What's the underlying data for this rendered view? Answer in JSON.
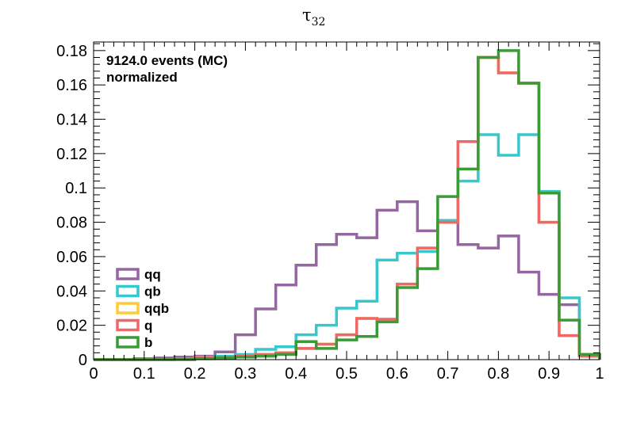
{
  "chart_data": {
    "type": "line",
    "title": "τ",
    "title_subscript": "32",
    "xlabel": "",
    "ylabel": "",
    "xlim": [
      0,
      1
    ],
    "ylim": [
      0,
      0.185
    ],
    "xticks": [
      "0",
      "0.1",
      "0.2",
      "0.3",
      "0.4",
      "0.5",
      "0.6",
      "0.7",
      "0.8",
      "0.9",
      "1"
    ],
    "yticks": [
      "0",
      "0.02",
      "0.04",
      "0.06",
      "0.08",
      "0.1",
      "0.12",
      "0.14",
      "0.16",
      "0.18"
    ],
    "annotation_lines": [
      "9124.0 events (MC)",
      "normalized"
    ],
    "grid": false,
    "legend_position": "bottom-left",
    "bin_edges": [
      0,
      0.04,
      0.08,
      0.12,
      0.16,
      0.2,
      0.24,
      0.28,
      0.32,
      0.36,
      0.4,
      0.44,
      0.48,
      0.52,
      0.56,
      0.6,
      0.64,
      0.68,
      0.72,
      0.76,
      0.8,
      0.84,
      0.88,
      0.92,
      0.96,
      1.0
    ],
    "series": [
      {
        "name": "qq",
        "color": "#9467a0",
        "values": [
          0,
          0,
          0.0005,
          0.001,
          0.0015,
          0.002,
          0.0045,
          0.0145,
          0.0295,
          0.0435,
          0.055,
          0.067,
          0.073,
          0.071,
          0.087,
          0.092,
          0.075,
          0.081,
          0.067,
          0.065,
          0.072,
          0.051,
          0.038,
          0.032,
          0.003
        ]
      },
      {
        "name": "qb",
        "color": "#36c8cc",
        "values": [
          0,
          0,
          0,
          0,
          0.0005,
          0.0015,
          0.002,
          0.003,
          0.006,
          0.0075,
          0.0145,
          0.02,
          0.03,
          0.034,
          0.058,
          0.062,
          0.063,
          0.081,
          0.104,
          0.131,
          0.119,
          0.131,
          0.098,
          0.036,
          0.003
        ]
      },
      {
        "name": "qqb",
        "color": "#ffcc33",
        "values": [
          0,
          0,
          0,
          0,
          0.0005,
          0.001,
          0.0015,
          0.002,
          0.003,
          0.004,
          0.0065,
          0.009,
          0.0145,
          0.024,
          0.0235,
          0.044,
          0.065,
          0.08,
          0.127,
          0.176,
          0.167,
          0.161,
          0.08,
          0.014,
          0.002
        ]
      },
      {
        "name": "q",
        "color": "#ef6767",
        "values": [
          0,
          0,
          0,
          0,
          0.0005,
          0.001,
          0.0015,
          0.002,
          0.003,
          0.004,
          0.0065,
          0.009,
          0.0145,
          0.024,
          0.0235,
          0.044,
          0.065,
          0.08,
          0.127,
          0.176,
          0.167,
          0.161,
          0.08,
          0.014,
          0.002
        ]
      },
      {
        "name": "b",
        "color": "#3a9a36",
        "values": [
          0,
          0,
          0,
          0,
          0,
          0.0005,
          0.001,
          0.0015,
          0.002,
          0.003,
          0.0105,
          0.0065,
          0.0115,
          0.0135,
          0.022,
          0.042,
          0.053,
          0.095,
          0.111,
          0.176,
          0.18,
          0.161,
          0.097,
          0.023,
          0.003
        ]
      }
    ]
  }
}
